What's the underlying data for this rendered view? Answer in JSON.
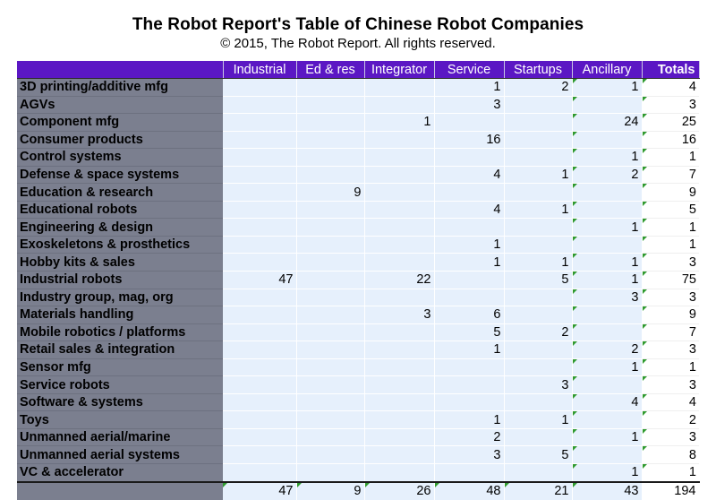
{
  "title": "The Robot Report's Table of Chinese Robot Companies",
  "subtitle": "© 2015, The Robot Report. All rights reserved.",
  "columns": [
    "Industrial",
    "Ed & res",
    "Integrator",
    "Service",
    "Startups",
    "Ancillary",
    "Totals"
  ],
  "rows": [
    {
      "label": "3D printing/additive mfg",
      "cells": [
        "",
        "",
        "",
        "1",
        "2",
        "1",
        "4"
      ]
    },
    {
      "label": "AGVs",
      "cells": [
        "",
        "",
        "",
        "3",
        "",
        "",
        "3"
      ]
    },
    {
      "label": "Component mfg",
      "cells": [
        "",
        "",
        "1",
        "",
        "",
        "24",
        "25"
      ]
    },
    {
      "label": "Consumer products",
      "cells": [
        "",
        "",
        "",
        "16",
        "",
        "",
        "16"
      ]
    },
    {
      "label": "Control systems",
      "cells": [
        "",
        "",
        "",
        "",
        "",
        "1",
        "1"
      ]
    },
    {
      "label": "Defense & space systems",
      "cells": [
        "",
        "",
        "",
        "4",
        "1",
        "2",
        "7"
      ]
    },
    {
      "label": "Education & research",
      "cells": [
        "",
        "9",
        "",
        "",
        "",
        "",
        "9"
      ]
    },
    {
      "label": "Educational robots",
      "cells": [
        "",
        "",
        "",
        "4",
        "1",
        "",
        "5"
      ]
    },
    {
      "label": "Engineering & design",
      "cells": [
        "",
        "",
        "",
        "",
        "",
        "1",
        "1"
      ]
    },
    {
      "label": "Exoskeletons & prosthetics",
      "cells": [
        "",
        "",
        "",
        "1",
        "",
        "",
        "1"
      ]
    },
    {
      "label": "Hobby kits & sales",
      "cells": [
        "",
        "",
        "",
        "1",
        "1",
        "1",
        "3"
      ]
    },
    {
      "label": "Industrial robots",
      "cells": [
        "47",
        "",
        "22",
        "",
        "5",
        "1",
        "75"
      ]
    },
    {
      "label": "Industry group, mag, org",
      "cells": [
        "",
        "",
        "",
        "",
        "",
        "3",
        "3"
      ]
    },
    {
      "label": "Materials handling",
      "cells": [
        "",
        "",
        "3",
        "6",
        "",
        "",
        "9"
      ]
    },
    {
      "label": "Mobile robotics / platforms",
      "cells": [
        "",
        "",
        "",
        "5",
        "2",
        "",
        "7"
      ]
    },
    {
      "label": "Retail sales & integration",
      "cells": [
        "",
        "",
        "",
        "1",
        "",
        "2",
        "3"
      ]
    },
    {
      "label": "Sensor mfg",
      "cells": [
        "",
        "",
        "",
        "",
        "",
        "1",
        "1"
      ]
    },
    {
      "label": "Service robots",
      "cells": [
        "",
        "",
        "",
        "",
        "3",
        "",
        "3"
      ]
    },
    {
      "label": "Software & systems",
      "cells": [
        "",
        "",
        "",
        "",
        "",
        "4",
        "4"
      ]
    },
    {
      "label": "Toys",
      "cells": [
        "",
        "",
        "",
        "1",
        "1",
        "",
        "2"
      ]
    },
    {
      "label": "Unmanned aerial/marine",
      "cells": [
        "",
        "",
        "",
        "2",
        "",
        "1",
        "3"
      ]
    },
    {
      "label": "Unmanned aerial systems",
      "cells": [
        "",
        "",
        "",
        "3",
        "5",
        "",
        "8"
      ]
    },
    {
      "label": "VC & accelerator",
      "cells": [
        "",
        "",
        "",
        "",
        "",
        "1",
        "1"
      ]
    }
  ],
  "totals": [
    "47",
    "9",
    "26",
    "48",
    "21",
    "43",
    "194"
  ],
  "colors": {
    "header_bg": "#5b17c4",
    "label_bg": "#7b7f8f",
    "cell_bg": "#e6f0fc",
    "comment_flag": "#2f9a2f"
  }
}
